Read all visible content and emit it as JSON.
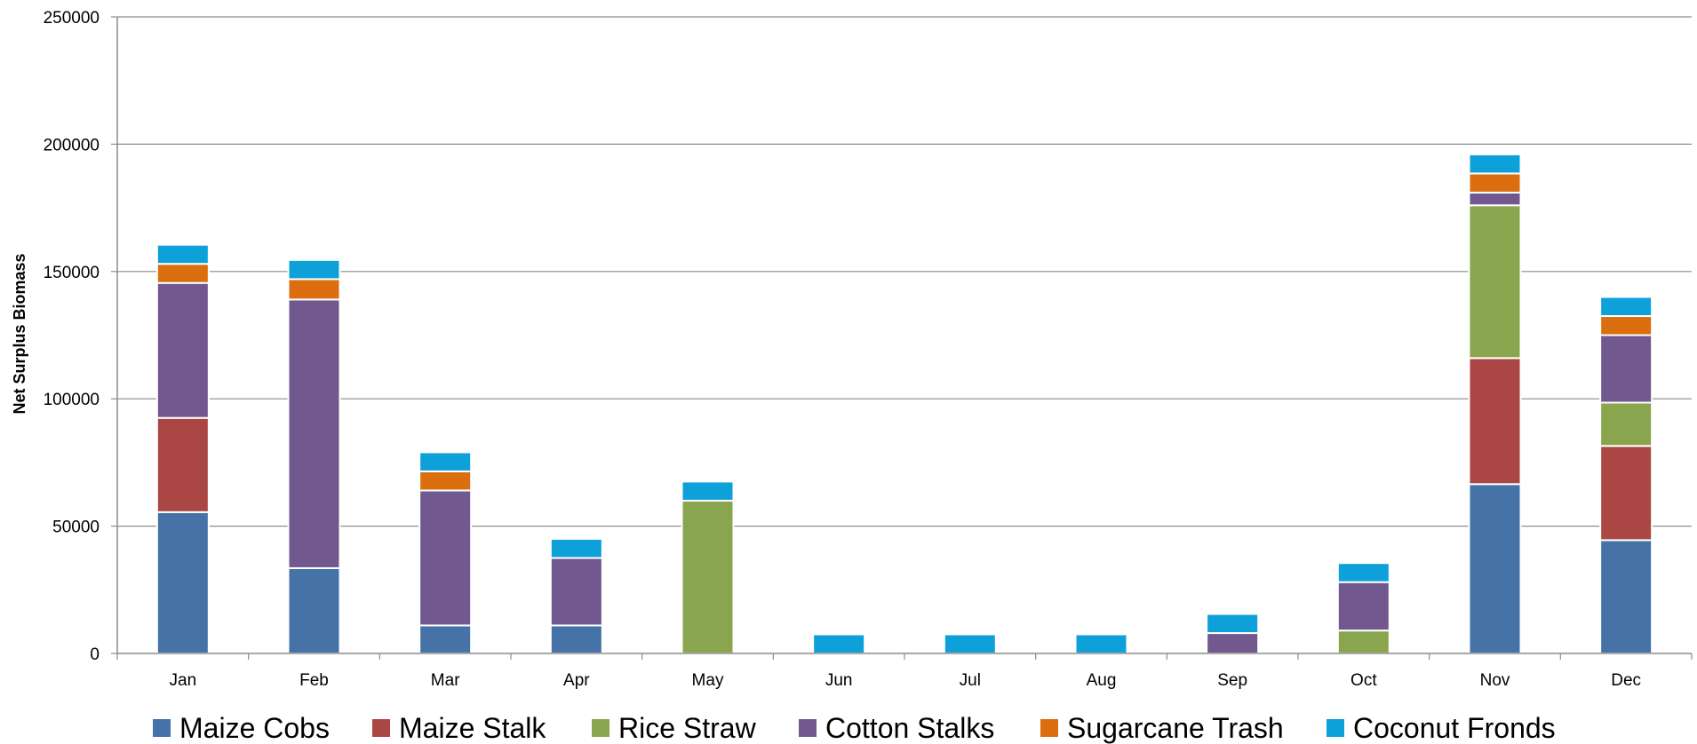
{
  "chart_data": {
    "type": "bar",
    "stacked": true,
    "title": "",
    "xlabel": "",
    "ylabel": "Net Surplus Biomass",
    "ylim": [
      0,
      250000
    ],
    "yticks": [
      "0",
      "50000",
      "100000",
      "150000",
      "200000",
      "250000"
    ],
    "grid": true,
    "legend_position": "bottom",
    "categories": [
      "Jan",
      "Feb",
      "Mar",
      "Apr",
      "May",
      "Jun",
      "Jul",
      "Aug",
      "Sep",
      "Oct",
      "Nov",
      "Dec"
    ],
    "series": [
      {
        "name": "Maize Cobs",
        "color": "#4572A7",
        "values": [
          55500,
          33500,
          11000,
          11000,
          0,
          0,
          0,
          0,
          0,
          0,
          66500,
          44500
        ]
      },
      {
        "name": "Maize Stalk",
        "color": "#AA4643",
        "values": [
          37000,
          0,
          0,
          0,
          0,
          0,
          0,
          0,
          0,
          0,
          49500,
          37000
        ]
      },
      {
        "name": "Rice Straw",
        "color": "#89A54E",
        "values": [
          0,
          0,
          0,
          0,
          60000,
          0,
          0,
          0,
          0,
          9000,
          60000,
          17000
        ]
      },
      {
        "name": "Cotton Stalks",
        "color": "#71588F",
        "values": [
          53000,
          105500,
          53000,
          26500,
          0,
          0,
          0,
          0,
          8000,
          19000,
          5000,
          26500
        ]
      },
      {
        "name": "Sugarcane Trash",
        "color": "#DB6E0E",
        "values": [
          7500,
          8000,
          7500,
          0,
          0,
          0,
          0,
          0,
          0,
          0,
          7500,
          7500
        ]
      },
      {
        "name": "Coconut Fronds",
        "color": "#0EA0D8",
        "values": [
          7500,
          7500,
          7500,
          7500,
          7500,
          7500,
          7500,
          7500,
          7500,
          7500,
          7500,
          7500
        ]
      }
    ]
  }
}
